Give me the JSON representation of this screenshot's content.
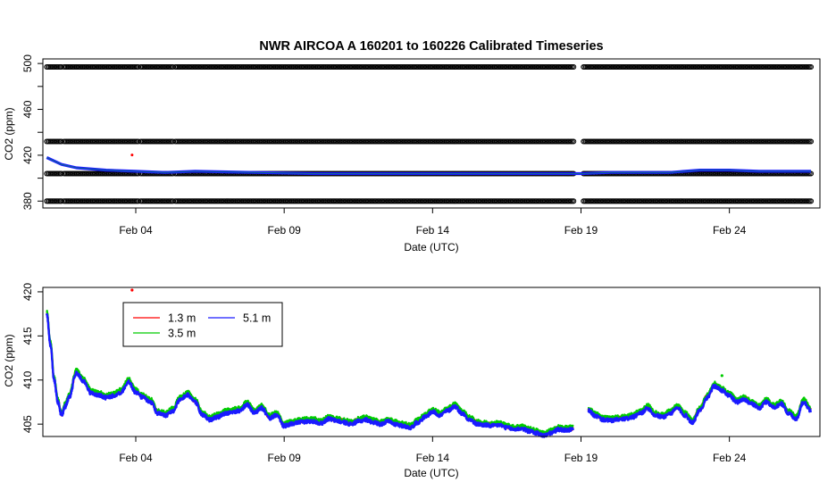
{
  "chart_data": [
    {
      "type": "scatter",
      "title": "NWR   AIRCOA  A   160201  to  160226   Calibrated Timeseries",
      "xlabel": "Date (UTC)",
      "ylabel": "CO2 (ppm)",
      "x_range": [
        "2016-02-01",
        "2016-02-27"
      ],
      "ylim": [
        374,
        504
      ],
      "x_ticks": [
        "Feb 04",
        "Feb 09",
        "Feb 14",
        "Feb 19",
        "Feb 24"
      ],
      "x_tick_dates": [
        "2016-02-04",
        "2016-02-09",
        "2016-02-14",
        "2016-02-19",
        "2016-02-24"
      ],
      "y_ticks": [
        "380",
        "420",
        "460",
        "500"
      ],
      "y_tick_values": [
        380,
        420,
        460,
        500
      ],
      "y_minor_ticks": [
        400,
        440,
        480
      ],
      "grid": false,
      "series": [
        {
          "role": "calibration-standards",
          "color": "#000000",
          "marker": "open-circle",
          "levels_ppm": [
            497,
            432,
            404,
            380
          ]
        },
        {
          "role": "sample-ambient",
          "color": "#1a1aff",
          "points": [
            [
              "2016-02-01 00:00",
              418
            ],
            [
              "2016-02-01 12:00",
              412
            ],
            [
              "2016-02-02 00:00",
              409
            ],
            [
              "2016-02-03 00:00",
              407
            ],
            [
              "2016-02-04 00:00",
              406
            ],
            [
              "2016-02-05 00:00",
              405
            ],
            [
              "2016-02-06 00:00",
              406
            ],
            [
              "2016-02-08 00:00",
              405
            ],
            [
              "2016-02-10 00:00",
              404
            ],
            [
              "2016-02-12 00:00",
              404
            ],
            [
              "2016-02-14 00:00",
              404
            ],
            [
              "2016-02-16 00:00",
              404
            ],
            [
              "2016-02-18 00:00",
              404
            ],
            [
              "2016-02-19 00:00",
              404
            ],
            [
              "2016-02-20 00:00",
              405
            ],
            [
              "2016-02-22 00:00",
              405
            ],
            [
              "2016-02-23 00:00",
              407
            ],
            [
              "2016-02-24 00:00",
              407
            ],
            [
              "2016-02-25 00:00",
              406
            ],
            [
              "2016-02-26 00:00",
              406
            ],
            [
              "2016-02-26 18:00",
              406
            ]
          ]
        }
      ]
    },
    {
      "type": "line",
      "xlabel": "Date (UTC)",
      "ylabel": "CO2 (ppm)",
      "x_range": [
        "2016-02-01",
        "2016-02-27"
      ],
      "ylim": [
        403.6,
        420.5
      ],
      "x_ticks": [
        "Feb 04",
        "Feb 09",
        "Feb 14",
        "Feb 19",
        "Feb 24"
      ],
      "x_tick_dates": [
        "2016-02-04",
        "2016-02-09",
        "2016-02-14",
        "2016-02-19",
        "2016-02-24"
      ],
      "y_ticks": [
        "405",
        "410",
        "415",
        "420"
      ],
      "y_tick_values": [
        405,
        410,
        415,
        420
      ],
      "grid": false,
      "legend_position": "top-left",
      "series": [
        {
          "name": "1.3 m",
          "color": "#ff0000",
          "offset": 0.15
        },
        {
          "name": "3.5 m",
          "color": "#00cc00",
          "offset": 0.3
        },
        {
          "name": "5.1 m",
          "color": "#1a1aff",
          "offset": 0.0
        }
      ],
      "points": [
        [
          "2016-02-01 00:00",
          417.5
        ],
        [
          "2016-02-01 03:00",
          414.0
        ],
        [
          "2016-02-01 06:00",
          410.0
        ],
        [
          "2016-02-01 09:00",
          407.5
        ],
        [
          "2016-02-01 12:00",
          406.0
        ],
        [
          "2016-02-01 15:00",
          407.0
        ],
        [
          "2016-02-01 18:00",
          408.0
        ],
        [
          "2016-02-02 00:00",
          410.8
        ],
        [
          "2016-02-02 06:00",
          409.8
        ],
        [
          "2016-02-02 12:00",
          408.5
        ],
        [
          "2016-02-02 18:00",
          408.3
        ],
        [
          "2016-02-03 00:00",
          408.0
        ],
        [
          "2016-02-03 06:00",
          408.2
        ],
        [
          "2016-02-03 12:00",
          408.6
        ],
        [
          "2016-02-03 18:00",
          409.8
        ],
        [
          "2016-02-04 00:00",
          408.6
        ],
        [
          "2016-02-04 06:00",
          408.0
        ],
        [
          "2016-02-04 12:00",
          407.5
        ],
        [
          "2016-02-04 18:00",
          406.2
        ],
        [
          "2016-02-05 00:00",
          406.0
        ],
        [
          "2016-02-05 06:00",
          406.5
        ],
        [
          "2016-02-05 12:00",
          407.8
        ],
        [
          "2016-02-05 18:00",
          408.3
        ],
        [
          "2016-02-06 00:00",
          407.5
        ],
        [
          "2016-02-06 06:00",
          406.0
        ],
        [
          "2016-02-06 12:00",
          405.5
        ],
        [
          "2016-02-06 18:00",
          405.8
        ],
        [
          "2016-02-07 00:00",
          406.2
        ],
        [
          "2016-02-07 06:00",
          406.4
        ],
        [
          "2016-02-07 12:00",
          406.5
        ],
        [
          "2016-02-07 18:00",
          407.2
        ],
        [
          "2016-02-08 00:00",
          406.3
        ],
        [
          "2016-02-08 06:00",
          406.8
        ],
        [
          "2016-02-08 12:00",
          405.7
        ],
        [
          "2016-02-08 18:00",
          406.0
        ],
        [
          "2016-02-09 00:00",
          404.8
        ],
        [
          "2016-02-09 06:00",
          405.0
        ],
        [
          "2016-02-09 12:00",
          405.2
        ],
        [
          "2016-02-09 18:00",
          405.3
        ],
        [
          "2016-02-10 00:00",
          405.3
        ],
        [
          "2016-02-10 06:00",
          405.1
        ],
        [
          "2016-02-10 12:00",
          405.6
        ],
        [
          "2016-02-10 18:00",
          405.4
        ],
        [
          "2016-02-11 00:00",
          405.2
        ],
        [
          "2016-02-11 06:00",
          405.0
        ],
        [
          "2016-02-11 12:00",
          405.3
        ],
        [
          "2016-02-11 18:00",
          405.5
        ],
        [
          "2016-02-12 00:00",
          405.2
        ],
        [
          "2016-02-12 06:00",
          405.0
        ],
        [
          "2016-02-12 12:00",
          405.3
        ],
        [
          "2016-02-12 18:00",
          405.0
        ],
        [
          "2016-02-13 00:00",
          404.8
        ],
        [
          "2016-02-13 06:00",
          404.6
        ],
        [
          "2016-02-13 12:00",
          405.2
        ],
        [
          "2016-02-13 18:00",
          405.8
        ],
        [
          "2016-02-14 00:00",
          406.4
        ],
        [
          "2016-02-14 06:00",
          406.0
        ],
        [
          "2016-02-14 12:00",
          406.5
        ],
        [
          "2016-02-14 18:00",
          407.0
        ],
        [
          "2016-02-15 00:00",
          406.2
        ],
        [
          "2016-02-15 06:00",
          405.5
        ],
        [
          "2016-02-15 12:00",
          405.0
        ],
        [
          "2016-02-15 18:00",
          404.9
        ],
        [
          "2016-02-16 00:00",
          404.8
        ],
        [
          "2016-02-16 06:00",
          404.9
        ],
        [
          "2016-02-16 12:00",
          404.6
        ],
        [
          "2016-02-16 18:00",
          404.4
        ],
        [
          "2016-02-17 00:00",
          404.5
        ],
        [
          "2016-02-17 06:00",
          404.2
        ],
        [
          "2016-02-17 12:00",
          404.0
        ],
        [
          "2016-02-17 18:00",
          403.7
        ],
        [
          "2016-02-18 00:00",
          404.0
        ],
        [
          "2016-02-18 06:00",
          404.4
        ],
        [
          "2016-02-18 12:00",
          404.3
        ],
        [
          "2016-02-18 18:00",
          404.4
        ],
        [
          "2016-02-19 00:00",
          null
        ],
        [
          "2016-02-19 06:00",
          406.5
        ],
        [
          "2016-02-19 12:00",
          405.9
        ],
        [
          "2016-02-19 18:00",
          405.5
        ],
        [
          "2016-02-20 00:00",
          405.4
        ],
        [
          "2016-02-20 06:00",
          405.5
        ],
        [
          "2016-02-20 12:00",
          405.6
        ],
        [
          "2016-02-20 18:00",
          405.8
        ],
        [
          "2016-02-21 00:00",
          406.2
        ],
        [
          "2016-02-21 06:00",
          406.8
        ],
        [
          "2016-02-21 12:00",
          406.0
        ],
        [
          "2016-02-21 18:00",
          405.8
        ],
        [
          "2016-02-22 00:00",
          406.2
        ],
        [
          "2016-02-22 06:00",
          406.8
        ],
        [
          "2016-02-22 12:00",
          406.0
        ],
        [
          "2016-02-22 18:00",
          405.2
        ],
        [
          "2016-02-23 00:00",
          406.5
        ],
        [
          "2016-02-23 06:00",
          408.0
        ],
        [
          "2016-02-23 12:00",
          409.3
        ],
        [
          "2016-02-23 18:00",
          408.8
        ],
        [
          "2016-02-24 00:00",
          408.2
        ],
        [
          "2016-02-24 06:00",
          407.5
        ],
        [
          "2016-02-24 12:00",
          407.8
        ],
        [
          "2016-02-24 18:00",
          407.3
        ],
        [
          "2016-02-25 00:00",
          406.8
        ],
        [
          "2016-02-25 06:00",
          407.5
        ],
        [
          "2016-02-25 12:00",
          406.9
        ],
        [
          "2016-02-25 18:00",
          407.3
        ],
        [
          "2016-02-26 00:00",
          406.2
        ],
        [
          "2016-02-26 06:00",
          405.6
        ],
        [
          "2016-02-26 12:00",
          407.5
        ],
        [
          "2016-02-26 18:00",
          406.5
        ]
      ],
      "outliers": [
        {
          "series": "1.3 m",
          "x": "2016-02-03 21:00",
          "y": 420.2
        },
        {
          "series": "3.5 m",
          "x": "2016-02-23 18:00",
          "y": 410.5
        }
      ]
    }
  ]
}
